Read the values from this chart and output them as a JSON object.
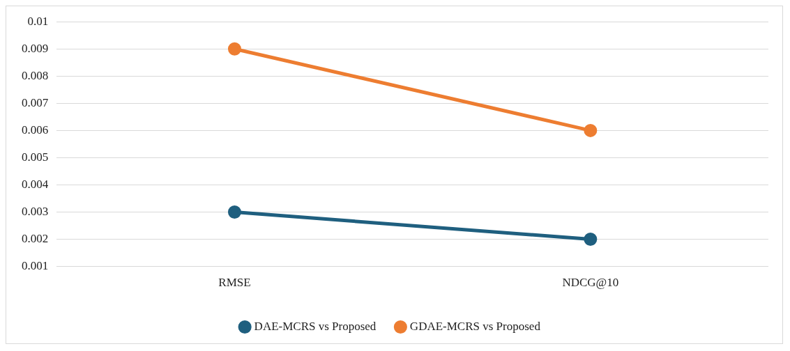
{
  "chart_data": {
    "type": "line",
    "categories": [
      "RMSE",
      "NDCG@10"
    ],
    "series": [
      {
        "name": "DAE-MCRS vs Proposed",
        "color": "#1f5f7f",
        "values": [
          0.003,
          0.002
        ]
      },
      {
        "name": "GDAE-MCRS vs Proposed",
        "color": "#ed7d31",
        "values": [
          0.009,
          0.006
        ]
      }
    ],
    "ylim": [
      0.001,
      0.01
    ],
    "yticks": [
      0.001,
      0.002,
      0.003,
      0.004,
      0.005,
      0.006,
      0.007,
      0.008,
      0.009,
      0.01
    ],
    "grid": "y",
    "legend": "bottom",
    "marker": "circle",
    "line_style": "solid"
  }
}
